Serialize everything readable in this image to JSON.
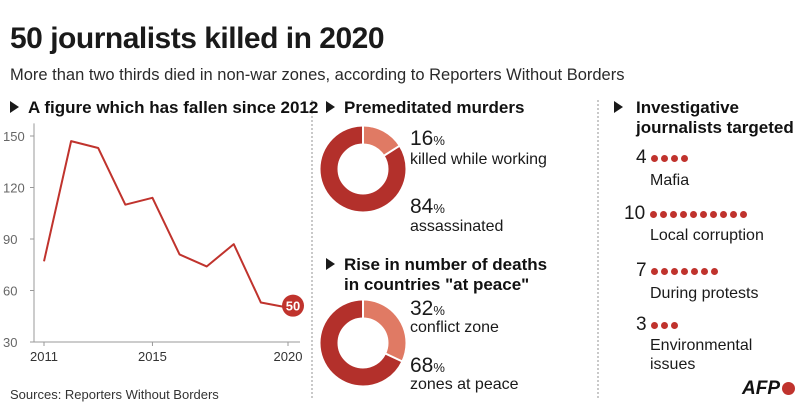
{
  "header": {
    "title": "50 journalists killed in 2020",
    "subtitle": "More than two thirds died in non-war zones, according to Reporters Without Borders"
  },
  "colors": {
    "dark_red": "#b3302b",
    "light_red": "#e07a64",
    "axis": "#999999",
    "line": "#c0332d"
  },
  "chart_data": [
    {
      "type": "line",
      "title": "A figure which has fallen since 2012",
      "x": [
        2011,
        2012,
        2013,
        2014,
        2015,
        2016,
        2017,
        2018,
        2019,
        2020
      ],
      "values": [
        77,
        147,
        143,
        110,
        114,
        81,
        74,
        87,
        53,
        50
      ],
      "ylim": [
        30,
        155
      ],
      "yticks": [
        30,
        60,
        90,
        120,
        150
      ],
      "xticks": [
        "2011",
        "2015",
        "2020"
      ],
      "end_label": "50",
      "grid": false
    },
    {
      "type": "pie",
      "title": "Premeditated murders",
      "slices": [
        {
          "big": "16",
          "pct": "%",
          "label": "killed while working",
          "value": 16,
          "color": "#e07a64"
        },
        {
          "big": "84",
          "pct": "%",
          "label": "assassinated",
          "value": 84,
          "color": "#b3302b"
        }
      ]
    },
    {
      "type": "pie",
      "title_lines": [
        "Rise in number of deaths",
        "in countries \"at peace\""
      ],
      "slices": [
        {
          "big": "32",
          "pct": "%",
          "label": "conflict zone",
          "value": 32,
          "color": "#e07a64"
        },
        {
          "big": "68",
          "pct": "%",
          "label": "zones at peace",
          "value": 68,
          "color": "#b3302b"
        }
      ]
    },
    {
      "type": "bar",
      "title_lines": [
        "Investigative",
        "journalists targeted"
      ],
      "items": [
        {
          "count": "4",
          "value": 4,
          "label": "Mafia"
        },
        {
          "count": "10",
          "value": 10,
          "label": "Local corruption"
        },
        {
          "count": "7",
          "value": 7,
          "label": "During protests"
        },
        {
          "count": "3",
          "value": 3,
          "label_lines": [
            "Environmental",
            "issues"
          ]
        }
      ]
    }
  ],
  "footer": {
    "sources": "Sources: Reporters Without Borders",
    "logo_text": "AFP"
  }
}
